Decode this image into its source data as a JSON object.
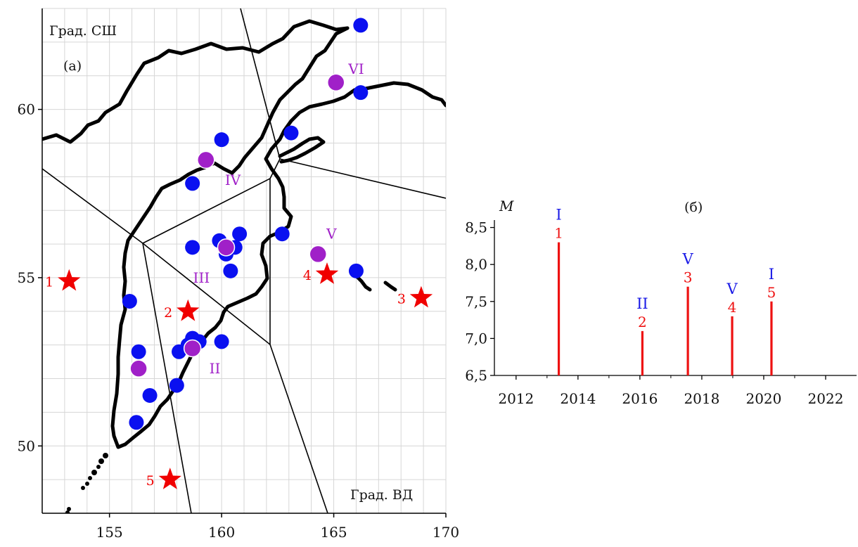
{
  "chart_data": [
    {
      "type": "scatter",
      "panel_label": "(а)",
      "ylabel": "Град. СШ",
      "xlabel": "Град. ВД",
      "xlim": [
        152,
        170
      ],
      "ylim": [
        48,
        63
      ],
      "x_ticks": [
        "155",
        "160",
        "165",
        "170"
      ],
      "y_ticks": [
        "50",
        "55",
        "60"
      ],
      "grid": true,
      "series": [
        {
          "marker": "circle",
          "color": "#0a10f0",
          "points": [
            [
              166.2,
              62.5
            ],
            [
              166.2,
              60.5
            ],
            [
              163.1,
              59.3
            ],
            [
              160.0,
              59.1
            ],
            [
              158.7,
              57.8
            ],
            [
              158.7,
              55.9
            ],
            [
              159.9,
              56.1
            ],
            [
              160.8,
              56.3
            ],
            [
              160.6,
              55.9
            ],
            [
              160.2,
              55.7
            ],
            [
              160.4,
              55.2
            ],
            [
              162.7,
              56.3
            ],
            [
              166.0,
              55.2
            ],
            [
              155.9,
              54.3
            ],
            [
              156.3,
              52.8
            ],
            [
              156.8,
              51.5
            ],
            [
              156.2,
              50.7
            ],
            [
              158.0,
              51.8
            ],
            [
              158.1,
              52.8
            ],
            [
              158.7,
              53.2
            ],
            [
              159.0,
              53.1
            ],
            [
              158.5,
              53.0
            ],
            [
              160.0,
              53.1
            ]
          ]
        },
        {
          "marker": "circle",
          "color": "#a020c8",
          "points": [
            [
              165.1,
              60.8
            ],
            [
              159.3,
              58.5
            ],
            [
              160.2,
              55.9
            ],
            [
              164.3,
              55.7
            ],
            [
              158.7,
              52.9
            ],
            [
              156.3,
              52.3
            ]
          ]
        },
        {
          "marker": "star",
          "color": "#f00000",
          "points": [
            [
              153.2,
              54.9,
              "1"
            ],
            [
              158.5,
              54.0,
              "2"
            ],
            [
              168.9,
              54.4,
              "3"
            ],
            [
              164.7,
              55.1,
              "4"
            ],
            [
              157.7,
              49.0,
              "5"
            ]
          ]
        }
      ],
      "annotations": [
        {
          "text": "VI",
          "x": 166.0,
          "y": 61.2,
          "color": "#a020c8"
        },
        {
          "text": "IV",
          "x": 160.5,
          "y": 57.9,
          "color": "#a020c8"
        },
        {
          "text": "III",
          "x": 159.1,
          "y": 55.0,
          "color": "#a020c8"
        },
        {
          "text": "V",
          "x": 164.9,
          "y": 56.3,
          "color": "#a020c8"
        },
        {
          "text": "II",
          "x": 159.7,
          "y": 52.3,
          "color": "#a020c8"
        }
      ]
    },
    {
      "type": "bar",
      "panel_label": "(б)",
      "ylabel": "M",
      "ylim": [
        6.5,
        8.8
      ],
      "xlim": [
        2011.3,
        2023
      ],
      "x_ticks": [
        "2012",
        "2014",
        "2016",
        "2018",
        "2020",
        "2022"
      ],
      "y_ticks": [
        "6,5",
        "7,0",
        "7,5",
        "8,0",
        "8,5"
      ],
      "bar_color": "#ee1111",
      "events": [
        {
          "x": 2013.38,
          "value": 8.3,
          "label": "1",
          "region": "I"
        },
        {
          "x": 2016.08,
          "value": 7.1,
          "label": "2",
          "region": "II"
        },
        {
          "x": 2017.55,
          "value": 7.7,
          "label": "3",
          "region": "V"
        },
        {
          "x": 2018.98,
          "value": 7.3,
          "label": "4",
          "region": "V"
        },
        {
          "x": 2020.25,
          "value": 7.5,
          "label": "5",
          "region": "I"
        }
      ]
    }
  ]
}
